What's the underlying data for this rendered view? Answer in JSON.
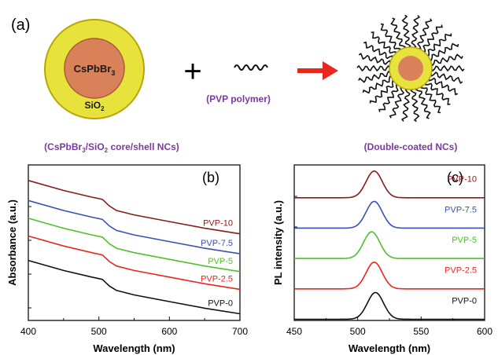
{
  "panel_a": {
    "label": "(a)",
    "core": "CsPbBr",
    "core_sub": "3",
    "shell": "SiO",
    "shell_sub": "2",
    "plus": "+",
    "polymer_caption": "(PVP polymer)",
    "left_caption_pre": "(CsPbBr",
    "left_caption_sub": "3",
    "left_caption_post": "/SiO",
    "left_caption_sub2": "2",
    "left_caption_end": " core/shell NCs)",
    "right_caption": "(Double-coated NCs)"
  },
  "colors": {
    "core": "#d9825a",
    "shell": "#e8e23c",
    "caption": "#7a3aa0",
    "arrow": "#e8281f"
  },
  "chart_data": [
    {
      "type": "line",
      "panel_label": "(b)",
      "xlabel": "Wavelength (nm)",
      "ylabel": "Absorbance (a.u.)",
      "xlim": [
        400,
        700
      ],
      "xticks": [
        400,
        500,
        600,
        700
      ],
      "series": [
        {
          "name": "PVP-10",
          "color": "#8b1a1a",
          "x": [
            400,
            450,
            490,
            505,
            515,
            525,
            550,
            600,
            650,
            700
          ],
          "y": [
            6.3,
            5.85,
            5.55,
            5.45,
            5.15,
            4.95,
            4.75,
            4.45,
            4.15,
            3.9
          ]
        },
        {
          "name": "PVP-7.5",
          "color": "#3b4fb8",
          "x": [
            400,
            450,
            490,
            505,
            515,
            525,
            550,
            600,
            650,
            700
          ],
          "y": [
            5.4,
            4.95,
            4.65,
            4.55,
            4.25,
            4.05,
            3.85,
            3.55,
            3.25,
            3.0
          ]
        },
        {
          "name": "PVP-5",
          "color": "#4fc02a",
          "x": [
            400,
            450,
            490,
            505,
            515,
            525,
            550,
            600,
            650,
            700
          ],
          "y": [
            4.6,
            4.15,
            3.85,
            3.75,
            3.45,
            3.25,
            3.05,
            2.75,
            2.45,
            2.2
          ]
        },
        {
          "name": "PVP-2.5",
          "color": "#e8281f",
          "x": [
            400,
            450,
            490,
            505,
            515,
            525,
            550,
            600,
            650,
            700
          ],
          "y": [
            3.8,
            3.35,
            3.05,
            2.95,
            2.65,
            2.45,
            2.25,
            1.95,
            1.65,
            1.4
          ]
        },
        {
          "name": "PVP-0",
          "color": "#111111",
          "x": [
            400,
            450,
            490,
            505,
            515,
            525,
            550,
            600,
            650,
            700
          ],
          "y": [
            2.7,
            2.25,
            1.95,
            1.85,
            1.55,
            1.35,
            1.15,
            0.85,
            0.55,
            0.3
          ]
        }
      ],
      "ylim": [
        0,
        7
      ]
    },
    {
      "type": "line",
      "panel_label": "(c)",
      "xlabel": "Wavelength (nm)",
      "ylabel": "PL intensity (a.u.)",
      "xlim": [
        450,
        600
      ],
      "xticks": [
        450,
        500,
        550,
        600
      ],
      "ylim": [
        0,
        6.4
      ],
      "peak_centers": [
        513,
        513,
        511,
        513,
        514
      ],
      "series": [
        {
          "name": "PVP-10",
          "color": "#8b1a1a",
          "offset": 5.0,
          "center": 513
        },
        {
          "name": "PVP-7.5",
          "color": "#3b4fb8",
          "offset": 3.75,
          "center": 513
        },
        {
          "name": "PVP-5",
          "color": "#4fc02a",
          "offset": 2.5,
          "center": 511
        },
        {
          "name": "PVP-2.5",
          "color": "#e8281f",
          "offset": 1.25,
          "center": 513
        },
        {
          "name": "PVP-0",
          "color": "#111111",
          "offset": 0.0,
          "center": 514
        }
      ]
    }
  ]
}
